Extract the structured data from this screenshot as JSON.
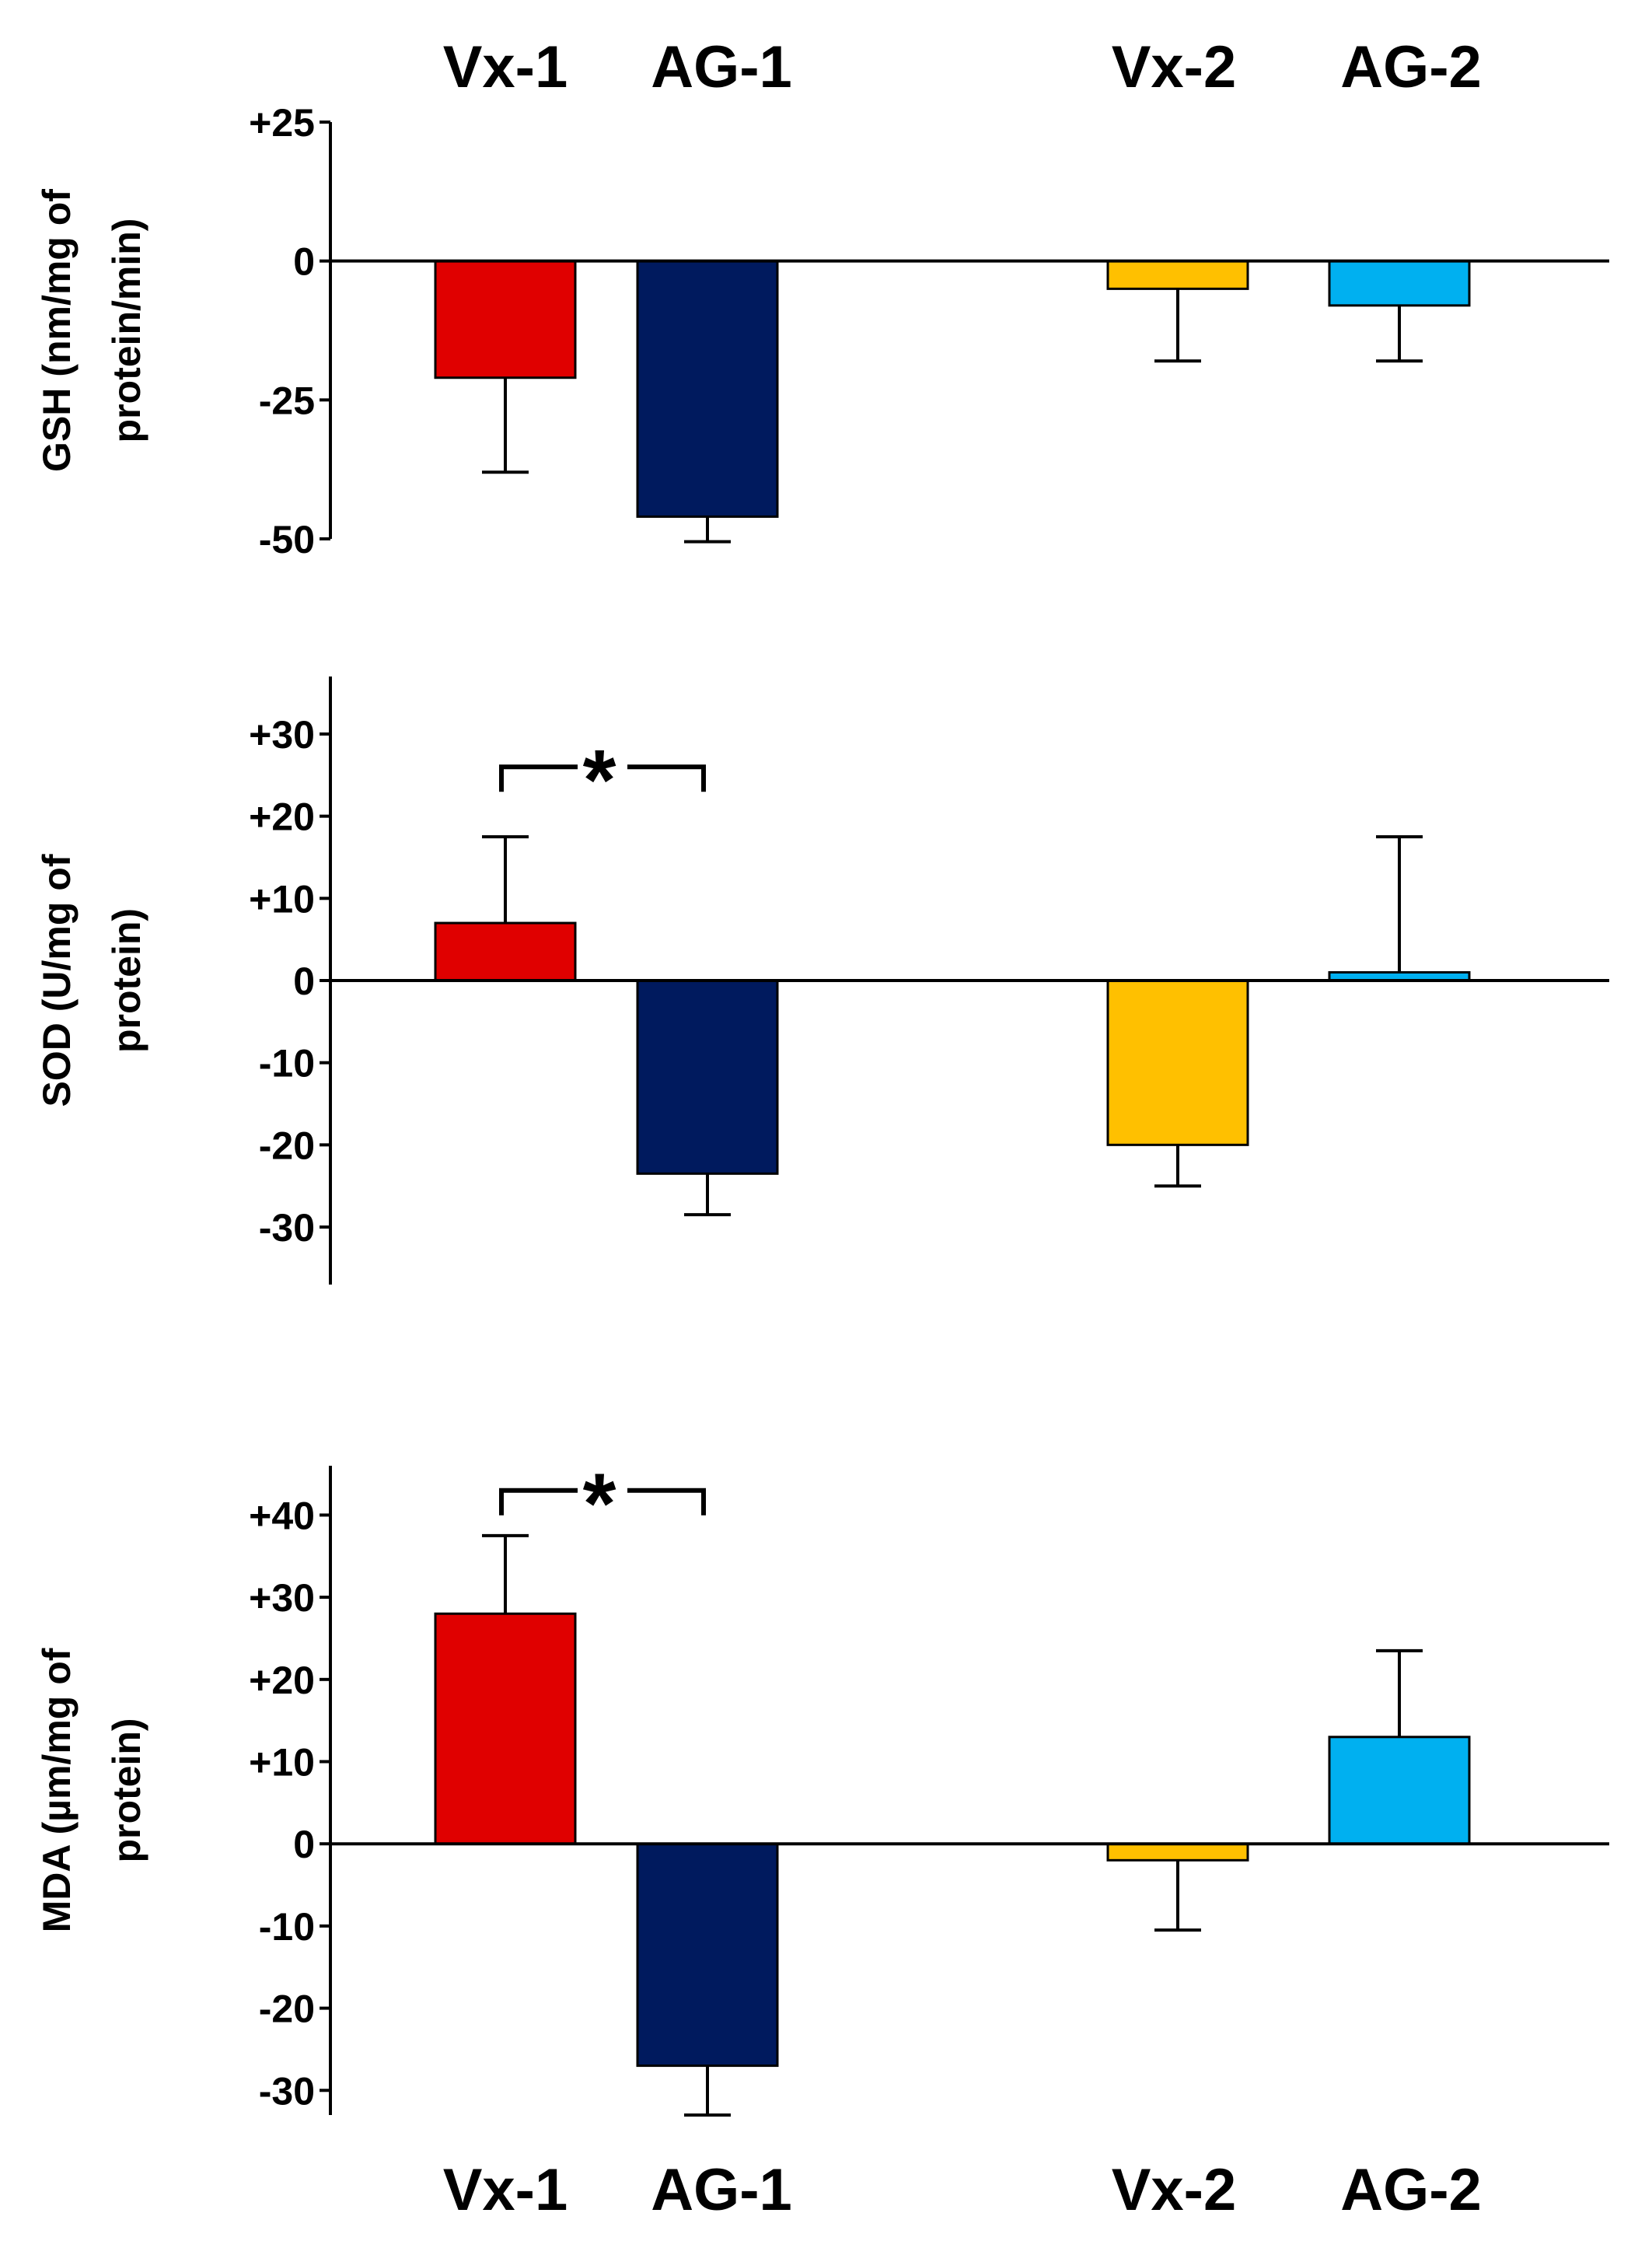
{
  "groups": [
    "Vx-1",
    "AG-1",
    "Vx-2",
    "AG-2"
  ],
  "colors": {
    "Vx-1": "#e00000",
    "AG-1": "#001a5e",
    "Vx-2": "#ffc000",
    "AG-2": "#00b0f0"
  },
  "chart_data": [
    {
      "type": "bar",
      "id": "gsh",
      "ylabel_lines": [
        "GSH (nm/mg of",
        "protein/min)"
      ],
      "ylim": [
        -50,
        25
      ],
      "ticks": [
        {
          "value": 25,
          "label": "+25"
        },
        {
          "value": 0,
          "label": "0"
        },
        {
          "value": -25,
          "label": "-25"
        },
        {
          "value": -50,
          "label": "-50"
        }
      ],
      "categories": [
        "Vx-1",
        "AG-1",
        "Vx-2",
        "AG-2"
      ],
      "values": [
        -21,
        -46,
        -5,
        -8
      ],
      "errors": [
        17,
        4.5,
        13,
        10
      ],
      "significance": []
    },
    {
      "type": "bar",
      "id": "sod",
      "ylabel_lines": [
        "SOD (U/mg of",
        "protein)"
      ],
      "ylim": [
        -37,
        37
      ],
      "ticks": [
        {
          "value": 30,
          "label": "+30"
        },
        {
          "value": 20,
          "label": "+20"
        },
        {
          "value": 10,
          "label": "+10"
        },
        {
          "value": 0,
          "label": "0"
        },
        {
          "value": -10,
          "label": "-10"
        },
        {
          "value": -20,
          "label": "-20"
        },
        {
          "value": -30,
          "label": "-30"
        }
      ],
      "categories": [
        "Vx-1",
        "AG-1",
        "Vx-2",
        "AG-2"
      ],
      "values": [
        7,
        -23.5,
        -20,
        1
      ],
      "errors": [
        10.5,
        5,
        5,
        16.5
      ],
      "significance": [
        {
          "from": "Vx-1",
          "to": "AG-1",
          "label": "*",
          "y": 26
        }
      ]
    },
    {
      "type": "bar",
      "id": "mda",
      "ylabel_lines": [
        "MDA (µm/mg of",
        "protein)"
      ],
      "ylim": [
        -33,
        46
      ],
      "ticks": [
        {
          "value": 40,
          "label": "+40"
        },
        {
          "value": 30,
          "label": "+30"
        },
        {
          "value": 20,
          "label": "+20"
        },
        {
          "value": 10,
          "label": "+10"
        },
        {
          "value": 0,
          "label": "0"
        },
        {
          "value": -10,
          "label": "-10"
        },
        {
          "value": -20,
          "label": "-20"
        },
        {
          "value": -30,
          "label": "-30"
        }
      ],
      "categories": [
        "Vx-1",
        "AG-1",
        "Vx-2",
        "AG-2"
      ],
      "values": [
        28,
        -27,
        -2,
        13
      ],
      "errors": [
        9.5,
        6,
        8.5,
        10.5
      ],
      "significance": [
        {
          "from": "Vx-1",
          "to": "AG-1",
          "label": "*",
          "y": 43
        }
      ]
    }
  ]
}
